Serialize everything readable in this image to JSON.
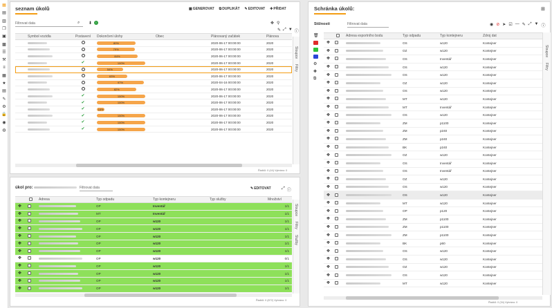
{
  "sidebar": {
    "icons": [
      "table-icon",
      "calendar-icon",
      "document-icon",
      "pages-icon",
      "briefcase-icon",
      "suitcase-icon",
      "document-lines-icon",
      "wrench-icon",
      "list-icon",
      "grid-icon",
      "star-icon",
      "calendar-small-icon",
      "tags-icon",
      "gears-icon",
      "lock-icon",
      "user-icon",
      "globe-icon"
    ]
  },
  "ukoly": {
    "title": "seznam úkolů",
    "toolbar": {
      "generate": "GENEROVAT",
      "duplicate": "DUPLIKÁT",
      "edit": "EDITOVAT",
      "add": "PŘIDAT"
    },
    "filter_placeholder": "Filtrovat data",
    "headers": [
      "Symbol vozidla",
      "Postavení",
      "Dokončení úlohy",
      "Obec",
      "Plánovaný začátek",
      "Plánova"
    ],
    "rows": [
      {
        "status": "circle",
        "pct": "80%",
        "fill": 0.8,
        "date": "2020-06-17 00:00:00",
        "p": "2020"
      },
      {
        "status": "circle",
        "pct": "79%",
        "fill": 0.79,
        "date": "2020-06-17 00:00:00",
        "p": "2020"
      },
      {
        "status": "circle",
        "pct": "84%",
        "fill": 0.84,
        "date": "2020-06-17 00:00:00",
        "p": "2020"
      },
      {
        "status": "check",
        "pct": "100%",
        "fill": 1.0,
        "date": "2020-06-17 00:00:00",
        "p": "2020"
      },
      {
        "status": "circle",
        "pct": "54%",
        "fill": 0.54,
        "date": "2020-06-17 00:00:00",
        "p": "2020",
        "selected": true
      },
      {
        "status": "circle",
        "pct": "63%",
        "fill": 0.63,
        "date": "2020-06-17 00:00:00",
        "p": "2020"
      },
      {
        "status": "circle",
        "pct": "97%",
        "fill": 0.97,
        "date": "2020-04-16 00:00:00",
        "p": "2020"
      },
      {
        "status": "circle",
        "pct": "82%",
        "fill": 0.82,
        "date": "2020-06-17 00:00:00",
        "p": "2020"
      },
      {
        "status": "check",
        "pct": "100%",
        "fill": 1.0,
        "date": "2020-06-17 00:00:00",
        "p": "2020"
      },
      {
        "status": "check",
        "pct": "100%",
        "fill": 1.0,
        "date": "2020-06-17 00:00:00",
        "p": "2020"
      },
      {
        "status": "check",
        "pct": "16%",
        "fill": 0.16,
        "date": "2020-06-17 00:00:00",
        "p": "2020"
      },
      {
        "status": "check",
        "pct": "100%",
        "fill": 1.0,
        "date": "2020-06-17 00:00:00",
        "p": "2020"
      },
      {
        "status": "check",
        "pct": "100%",
        "fill": 1.0,
        "date": "2020-06-17 00:00:00",
        "p": "2020"
      },
      {
        "status": "check",
        "pct": "100%",
        "fill": 1.0,
        "date": "2020-06-17 00:00:00",
        "p": "2020"
      }
    ],
    "vtabs": [
      "Sloupce",
      "Filtry"
    ],
    "footer": "Řádků: 0 (44)   Vybráno: 0"
  },
  "ukol_pro": {
    "title": "úkol pro:",
    "filter_placeholder": "Filtrovat data",
    "edit": "EDITOVAT",
    "headers": [
      "Adresa",
      "Typ odpadu",
      "Typ kontejneru",
      "Typ služby",
      "Množství"
    ],
    "rows": [
      {
        "odpad": "OP",
        "kont": "Inventář",
        "m": "1/1",
        "green": true
      },
      {
        "odpad": "MT",
        "kont": "Inventář",
        "m": "1/1",
        "green": true
      },
      {
        "odpad": "OP",
        "kont": "w120",
        "m": "1/1",
        "green": true
      },
      {
        "odpad": "OP",
        "kont": "w120",
        "m": "1/1",
        "green": true
      },
      {
        "odpad": "OP",
        "kont": "w120",
        "m": "1/1",
        "green": true
      },
      {
        "odpad": "OP",
        "kont": "w120",
        "m": "1/1",
        "green": true
      },
      {
        "odpad": "OP",
        "kont": "w120",
        "m": "1/1",
        "green": true
      },
      {
        "odpad": "OP",
        "kont": "w120",
        "m": "0/1",
        "green": false
      },
      {
        "odpad": "OP",
        "kont": "w120",
        "m": "1/1",
        "green": true
      },
      {
        "odpad": "OP",
        "kont": "w120",
        "m": "1/1",
        "green": true
      },
      {
        "odpad": "OP",
        "kont": "w120",
        "m": "1/1",
        "green": true
      },
      {
        "odpad": "OP",
        "kont": "w120",
        "m": "1/1",
        "green": true
      }
    ],
    "vtabs": [
      "Sloupce",
      "Filtry",
      "Služby"
    ],
    "footer": "Řádků: 0 (872)   Vybráno: 0"
  },
  "schranka": {
    "title": "Schránka úkolů:",
    "tab": "Stížnosti",
    "filter_placeholder": "Filtrovat data",
    "headers": [
      "Adresa exportního bodu",
      "Typ odpadu",
      "Typ kontejneru",
      "Zdroj dat"
    ],
    "rows": [
      [
        "OS",
        "w120",
        "Kontejner"
      ],
      [
        "OZ",
        "w120",
        "Kontejner"
      ],
      [
        "OS",
        "Inventář",
        "Kontejner"
      ],
      [
        "OS",
        "w120",
        "Kontejner"
      ],
      [
        "OS",
        "w120",
        "Kontejner"
      ],
      [
        "OZ",
        "w120",
        "Kontejner"
      ],
      [
        "OS",
        "w120",
        "Kontejner"
      ],
      [
        "MT",
        "w120",
        "Kontejner"
      ],
      [
        "MT",
        "Inventář",
        "Kontejner"
      ],
      [
        "OS",
        "w120",
        "Kontejner"
      ],
      [
        "ZM",
        "p1100",
        "Kontejner"
      ],
      [
        "ZM",
        "p240",
        "Kontejner"
      ],
      [
        "ZM",
        "p240",
        "Kontejner"
      ],
      [
        "BK",
        "p240",
        "Kontejner"
      ],
      [
        "OZ",
        "w120",
        "Kontejner"
      ],
      [
        "OS",
        "Inventář",
        "Kontejner"
      ],
      [
        "OS",
        "Inventář",
        "Kontejner"
      ],
      [
        "OZ",
        "w120",
        "Kontejner"
      ],
      [
        "OS",
        "w120",
        "Kontejner"
      ],
      [
        "OS",
        "w120",
        "Kontejner"
      ],
      [
        "MT",
        "w120",
        "Kontejner"
      ],
      [
        "OP",
        "p120",
        "Kontejner"
      ],
      [
        "ZM",
        "p1100",
        "Kontejner"
      ],
      [
        "ZM",
        "p1100",
        "Kontejner"
      ],
      [
        "ZM",
        "p1100",
        "Kontejner"
      ],
      [
        "BK",
        "p60",
        "Kontejner"
      ],
      [
        "OS",
        "w120",
        "Kontejner"
      ],
      [
        "OS",
        "w120",
        "Kontejner"
      ],
      [
        "OZ",
        "w120",
        "Kontejner"
      ],
      [
        "OS",
        "w120",
        "Kontejner"
      ],
      [
        "MT",
        "w120",
        "Kontejner"
      ]
    ],
    "selected_index": 19,
    "vtabs": [
      "Sloupce",
      "Filtry"
    ],
    "footer": "Řádků: 0 (34)   Vybráno: 0"
  }
}
